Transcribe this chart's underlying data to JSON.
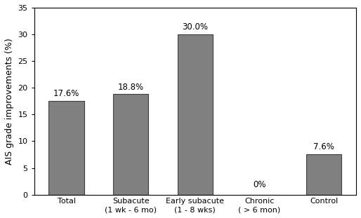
{
  "categories": [
    "Total",
    "Subacute\n(1 wk - 6 mo)",
    "Early subacute\n(1 - 8 wks)",
    "Chronic\n( > 6 mon)",
    "Control"
  ],
  "values": [
    17.6,
    18.8,
    30.0,
    0.0,
    7.6
  ],
  "labels": [
    "17.6%",
    "18.8%",
    "30.0%",
    "0%",
    "7.6%"
  ],
  "bar_color": "#808080",
  "bar_edgecolor": "#404040",
  "ylabel": "AIS grade improvements (%)",
  "ylim": [
    0,
    35
  ],
  "yticks": [
    0,
    5,
    10,
    15,
    20,
    25,
    30,
    35
  ],
  "figsize": [
    5.14,
    3.11
  ],
  "dpi": 100,
  "background_color": "#ffffff",
  "label_fontsize": 8.5,
  "tick_fontsize": 8,
  "ylabel_fontsize": 9,
  "bar_width": 0.55
}
